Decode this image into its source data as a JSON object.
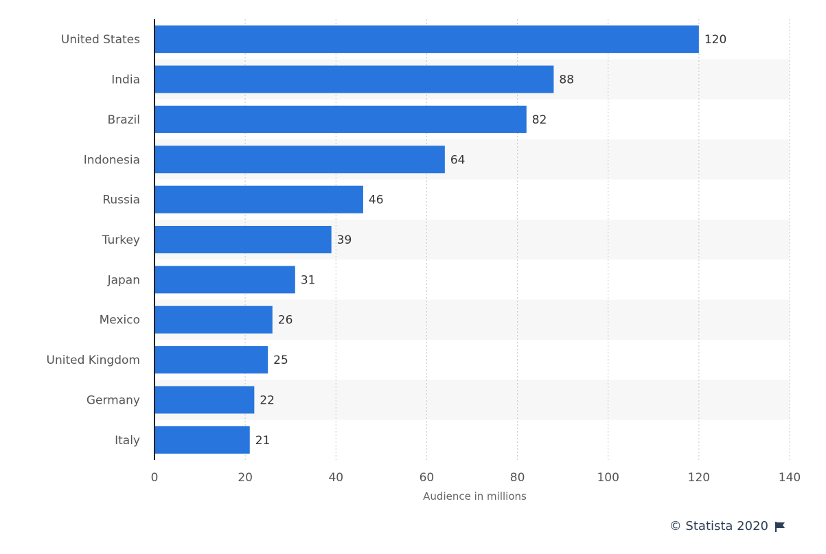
{
  "chart_data": {
    "type": "bar",
    "orientation": "horizontal",
    "categories": [
      "United States",
      "India",
      "Brazil",
      "Indonesia",
      "Russia",
      "Turkey",
      "Japan",
      "Mexico",
      "United Kingdom",
      "Germany",
      "Italy"
    ],
    "values": [
      120,
      88,
      82,
      64,
      46,
      39,
      31,
      26,
      25,
      22,
      21
    ],
    "xlabel": "Audience in millions",
    "ylabel": "",
    "xlim": [
      0,
      140
    ],
    "xticks": [
      0,
      20,
      40,
      60,
      80,
      100,
      120,
      140
    ],
    "grid": true,
    "bar_color": "#2876dd",
    "data_labels": true
  },
  "credit": {
    "text": "© Statista 2020",
    "icon": "flag-icon"
  }
}
